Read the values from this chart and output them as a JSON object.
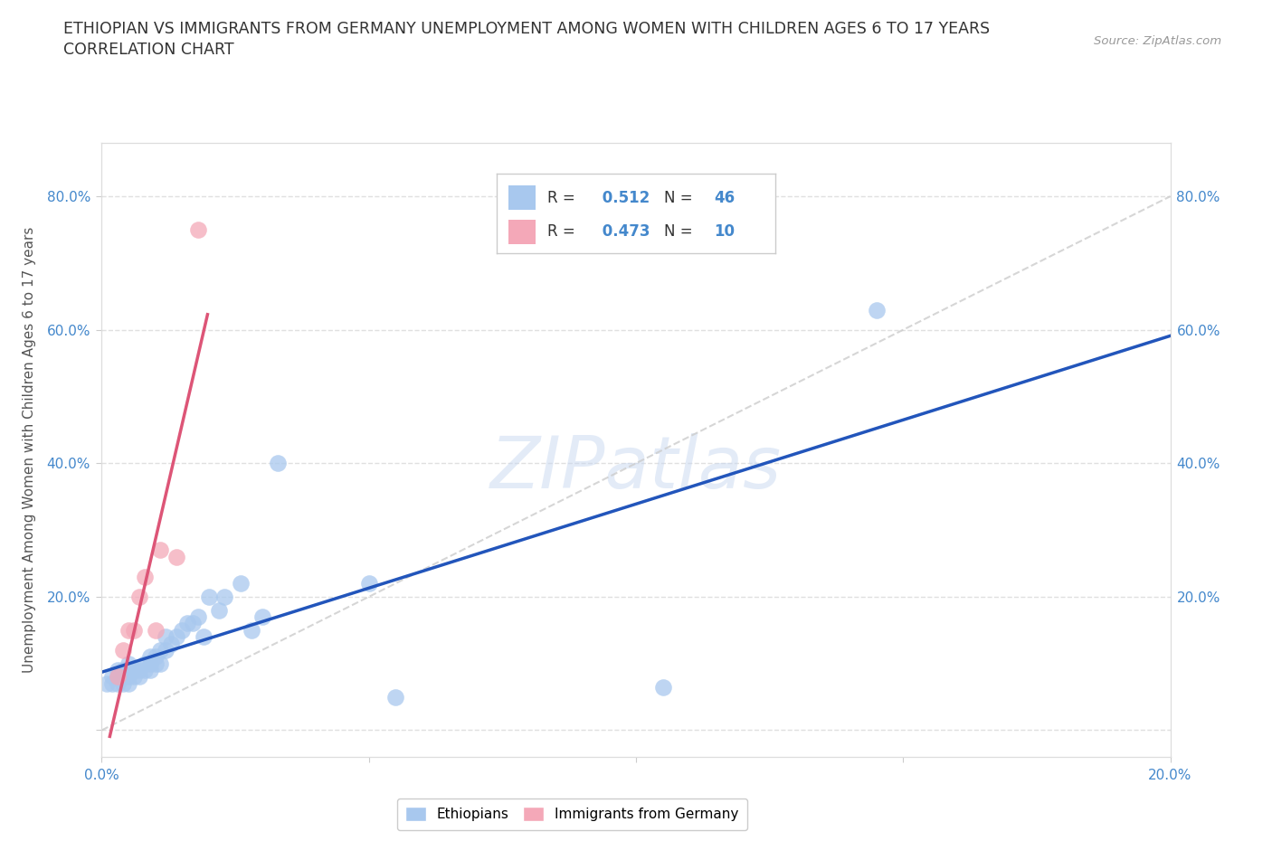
{
  "title_line1": "ETHIOPIAN VS IMMIGRANTS FROM GERMANY UNEMPLOYMENT AMONG WOMEN WITH CHILDREN AGES 6 TO 17 YEARS",
  "title_line2": "CORRELATION CHART",
  "source": "Source: ZipAtlas.com",
  "ylabel": "Unemployment Among Women with Children Ages 6 to 17 years",
  "xlim": [
    0.0,
    0.2
  ],
  "ylim": [
    -0.04,
    0.88
  ],
  "blue_color": "#A8C8EE",
  "pink_color": "#F4A8B8",
  "line_blue": "#2255BB",
  "line_pink": "#DD5577",
  "line_diagonal": "#CCCCCC",
  "r_blue": 0.512,
  "n_blue": 46,
  "r_pink": 0.473,
  "n_pink": 10,
  "ethiopians_x": [
    0.001,
    0.002,
    0.002,
    0.003,
    0.003,
    0.003,
    0.004,
    0.004,
    0.004,
    0.005,
    0.005,
    0.005,
    0.005,
    0.006,
    0.006,
    0.007,
    0.007,
    0.008,
    0.008,
    0.009,
    0.009,
    0.009,
    0.01,
    0.01,
    0.011,
    0.011,
    0.012,
    0.012,
    0.013,
    0.014,
    0.015,
    0.016,
    0.017,
    0.018,
    0.019,
    0.02,
    0.022,
    0.023,
    0.026,
    0.028,
    0.03,
    0.033,
    0.05,
    0.055,
    0.105,
    0.145
  ],
  "ethiopians_y": [
    0.07,
    0.07,
    0.08,
    0.07,
    0.08,
    0.09,
    0.07,
    0.08,
    0.09,
    0.07,
    0.08,
    0.09,
    0.1,
    0.08,
    0.09,
    0.08,
    0.09,
    0.09,
    0.1,
    0.09,
    0.1,
    0.11,
    0.1,
    0.11,
    0.1,
    0.12,
    0.12,
    0.14,
    0.13,
    0.14,
    0.15,
    0.16,
    0.16,
    0.17,
    0.14,
    0.2,
    0.18,
    0.2,
    0.22,
    0.15,
    0.17,
    0.4,
    0.22,
    0.05,
    0.065,
    0.63
  ],
  "germany_x": [
    0.003,
    0.004,
    0.005,
    0.006,
    0.007,
    0.008,
    0.01,
    0.011,
    0.014,
    0.018
  ],
  "germany_y": [
    0.08,
    0.12,
    0.15,
    0.15,
    0.2,
    0.23,
    0.15,
    0.27,
    0.26,
    0.75
  ],
  "watermark": "ZIPatlas",
  "background_color": "#FFFFFF",
  "grid_color": "#E0E0E0",
  "tick_color": "#4488CC",
  "label_color": "#555555"
}
